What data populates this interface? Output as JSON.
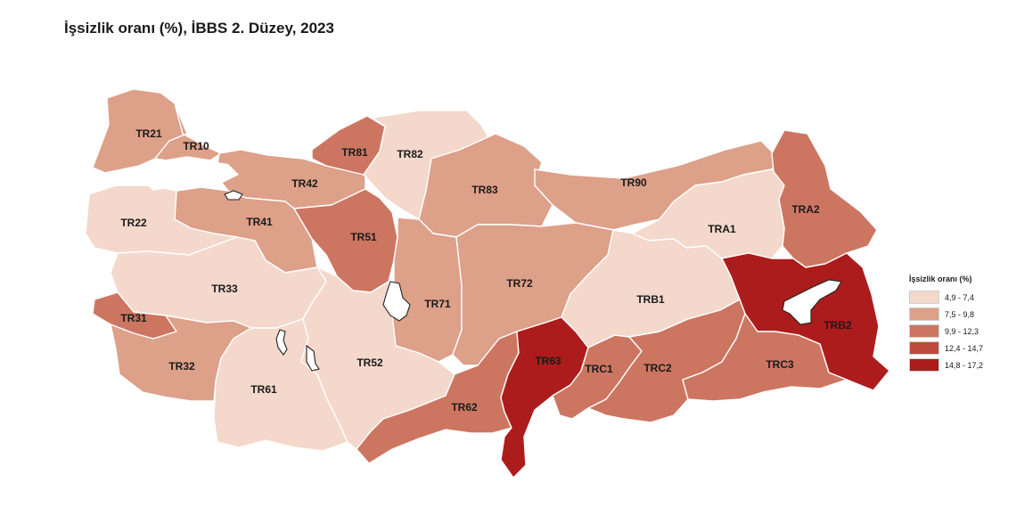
{
  "title": "İşsizlik oranı (%), İBBS 2. Düzey, 2023",
  "legend": {
    "title": "İşsizlik oranı (%)",
    "classes": [
      {
        "label": "4,9 - 7,4",
        "color": "#f3d8cb"
      },
      {
        "label": "7,5 - 9,8",
        "color": "#dda089"
      },
      {
        "label": "9,9 - 12,3",
        "color": "#cc7661"
      },
      {
        "label": "12,4 - 14,7",
        "color": "#bc4a3d"
      },
      {
        "label": "14,8 - 17,2",
        "color": "#ad1c1c"
      }
    ]
  },
  "regions": [
    {
      "code": "TR21",
      "class": 1
    },
    {
      "code": "TR10",
      "class": 1
    },
    {
      "code": "TR22",
      "class": 0
    },
    {
      "code": "TR42",
      "class": 1
    },
    {
      "code": "TR41",
      "class": 1
    },
    {
      "code": "TR81",
      "class": 2
    },
    {
      "code": "TR82",
      "class": 0
    },
    {
      "code": "TR83",
      "class": 1
    },
    {
      "code": "TR90",
      "class": 1
    },
    {
      "code": "TRA2",
      "class": 2
    },
    {
      "code": "TRA1",
      "class": 0
    },
    {
      "code": "TR51",
      "class": 2
    },
    {
      "code": "TR33",
      "class": 0
    },
    {
      "code": "TR31",
      "class": 2
    },
    {
      "code": "TR32",
      "class": 1
    },
    {
      "code": "TR61",
      "class": 0
    },
    {
      "code": "TR52",
      "class": 0
    },
    {
      "code": "TR71",
      "class": 1
    },
    {
      "code": "TR72",
      "class": 1
    },
    {
      "code": "TRB1",
      "class": 0
    },
    {
      "code": "TRB2",
      "class": 4
    },
    {
      "code": "TR62",
      "class": 2
    },
    {
      "code": "TR63",
      "class": 4
    },
    {
      "code": "TRC1",
      "class": 2
    },
    {
      "code": "TRC2",
      "class": 2
    },
    {
      "code": "TRC3",
      "class": 2
    }
  ]
}
